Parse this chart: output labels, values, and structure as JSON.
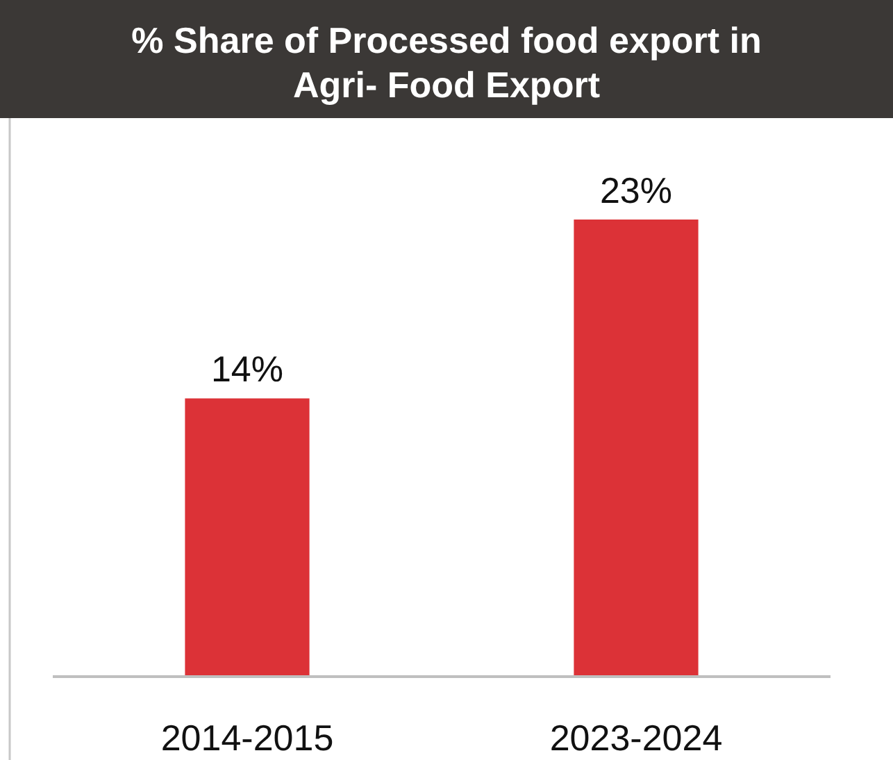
{
  "chart_data": {
    "type": "bar",
    "title": "% Share of Processed food export in Agri- Food Export",
    "categories": [
      "2014-2015",
      "2023-2024"
    ],
    "values": [
      14,
      23
    ],
    "value_labels": [
      "14%",
      "23%"
    ],
    "color": "#dc3237"
  }
}
